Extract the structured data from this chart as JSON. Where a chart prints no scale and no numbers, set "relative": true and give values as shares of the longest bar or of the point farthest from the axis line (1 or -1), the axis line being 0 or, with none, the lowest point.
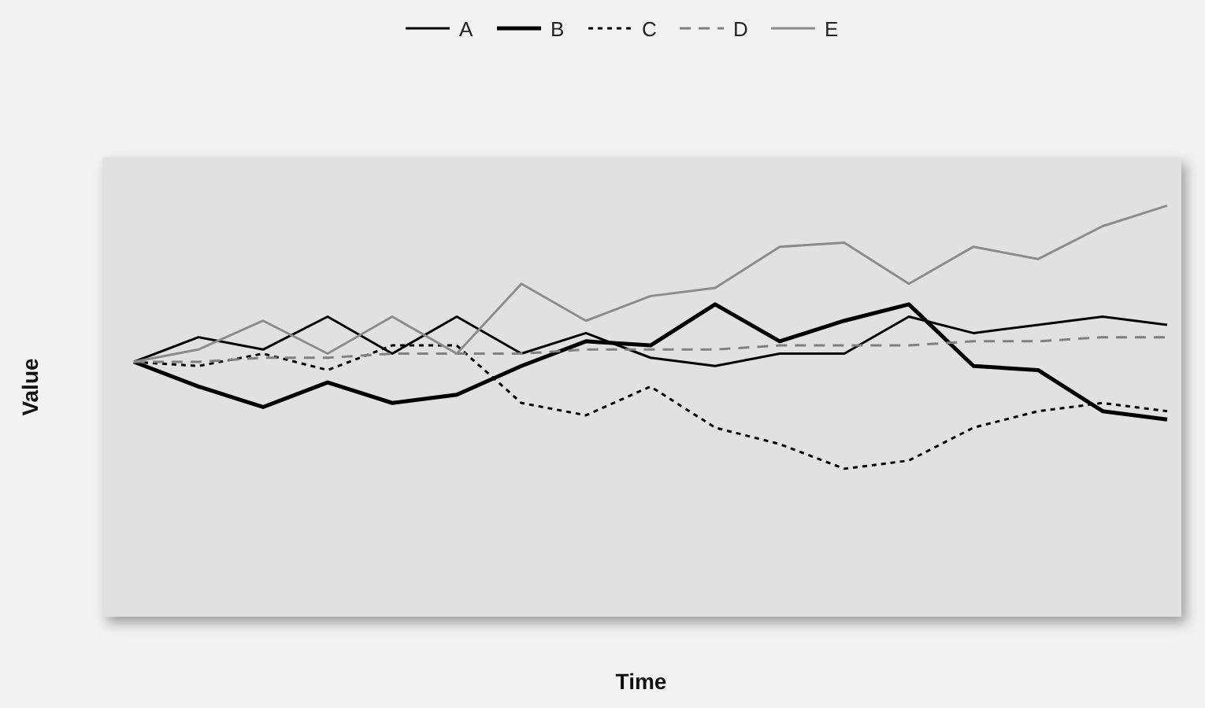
{
  "chart_data": {
    "type": "line",
    "relative": true,
    "xlabel": "Time",
    "ylabel": "Value",
    "legend": "top",
    "grid": false,
    "categories": [
      null,
      null,
      null,
      null,
      null,
      null,
      null,
      null,
      null,
      null,
      null,
      null,
      null,
      null,
      null,
      null,
      null
    ],
    "series": [
      {
        "name": "A",
        "color": "#000000",
        "line_style": "solid",
        "values": [
          0.62,
          0.68,
          0.65,
          0.73,
          0.64,
          0.73,
          0.64,
          0.69,
          0.63,
          0.61,
          0.64,
          0.64,
          0.73,
          0.69,
          0.71,
          0.73,
          0.71
        ]
      },
      {
        "name": "B",
        "color": "#000000",
        "line_style": "solid",
        "values": [
          0.62,
          0.56,
          0.51,
          0.57,
          0.52,
          0.54,
          0.61,
          0.67,
          0.66,
          0.76,
          0.67,
          0.72,
          0.76,
          0.61,
          0.6,
          0.5,
          0.48
        ]
      },
      {
        "name": "C",
        "color": "#000000",
        "line_style": "dotted",
        "values": [
          0.62,
          0.61,
          0.64,
          0.6,
          0.66,
          0.66,
          0.52,
          0.49,
          0.56,
          0.46,
          0.42,
          0.36,
          0.38,
          0.46,
          0.5,
          0.52,
          0.5
        ]
      },
      {
        "name": "D",
        "color": "#808080",
        "line_style": "dashed",
        "values": [
          0.62,
          0.62,
          0.63,
          0.63,
          0.64,
          0.64,
          0.64,
          0.65,
          0.65,
          0.65,
          0.66,
          0.66,
          0.66,
          0.67,
          0.67,
          0.68,
          0.68
        ]
      },
      {
        "name": "E",
        "color": "#8c8c8c",
        "line_style": "solid",
        "values": [
          0.62,
          0.65,
          0.72,
          0.64,
          0.73,
          0.64,
          0.81,
          0.72,
          0.78,
          0.8,
          0.9,
          0.91,
          0.81,
          0.9,
          0.87,
          0.95,
          1
        ]
      }
    ]
  }
}
